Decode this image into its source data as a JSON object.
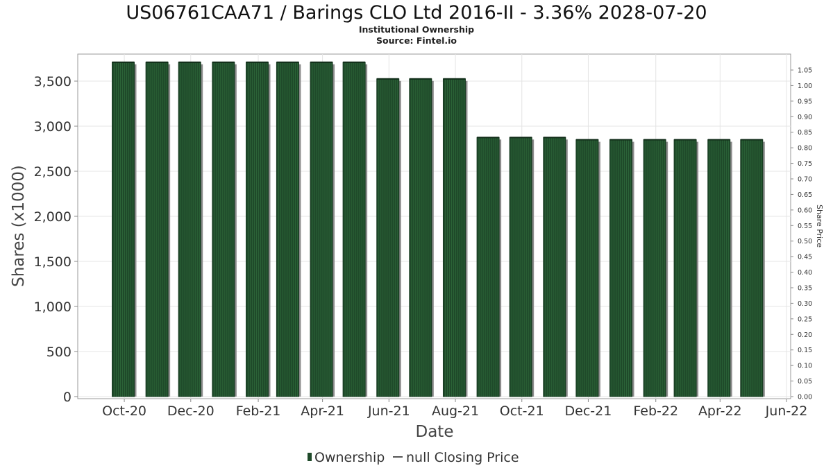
{
  "chart_data": {
    "type": "bar",
    "title": "US06761CAA71 / Barings CLO Ltd 2016-II - 3.36% 2028-07-20",
    "subtitle": "Institutional Ownership",
    "source": "Source: Fintel.io",
    "xlabel": "Date",
    "ylabel": "Shares (x1000)",
    "y2label": "Share Price",
    "ylim": [
      0,
      3800
    ],
    "yticks": [
      0,
      500,
      1000,
      1500,
      2000,
      2500,
      3000,
      3500
    ],
    "ytick_labels": [
      "0",
      "500",
      "1,000",
      "1,500",
      "2,000",
      "2,500",
      "3,000",
      "3,500"
    ],
    "y2lim": [
      0,
      1.05
    ],
    "y2ticks": [
      0.0,
      0.05,
      0.1,
      0.15,
      0.2,
      0.25,
      0.3,
      0.35,
      0.4,
      0.45,
      0.5,
      0.55,
      0.6,
      0.65,
      0.7,
      0.75,
      0.8,
      0.85,
      0.9,
      0.95,
      1.0,
      1.05
    ],
    "y2tick_labels": [
      "0.00",
      "0.05",
      "0.10",
      "0.15",
      "0.20",
      "0.25",
      "0.30",
      "0.35",
      "0.40",
      "0.45",
      "0.50",
      "0.55",
      "0.60",
      "0.65",
      "0.70",
      "0.75",
      "0.80",
      "0.85",
      "0.90",
      "0.95",
      "1.00",
      "1.05"
    ],
    "xlim": [
      "2020-09-01",
      "2022-06-01"
    ],
    "xticks": [
      "2020-10-01",
      "2020-12-01",
      "2021-02-01",
      "2021-04-01",
      "2021-06-01",
      "2021-08-01",
      "2021-10-01",
      "2021-12-01",
      "2022-02-01",
      "2022-04-01",
      "2022-06-01"
    ],
    "xtick_labels": [
      "Oct-20",
      "Dec-20",
      "Feb-21",
      "Apr-21",
      "Jun-21",
      "Aug-21",
      "Oct-21",
      "Dec-21",
      "Feb-22",
      "Apr-22",
      "Jun-22"
    ],
    "grid": true,
    "series": [
      {
        "name": "Ownership",
        "color": "#1f4a2a",
        "x": [
          "2020-09-30",
          "2020-10-31",
          "2020-11-30",
          "2020-12-31",
          "2021-01-31",
          "2021-02-28",
          "2021-03-31",
          "2021-04-30",
          "2021-05-31",
          "2021-06-30",
          "2021-07-31",
          "2021-08-31",
          "2021-09-30",
          "2021-10-31",
          "2021-11-30",
          "2021-12-31",
          "2022-01-31",
          "2022-02-28",
          "2022-03-31",
          "2022-04-30"
        ],
        "values": [
          3710,
          3710,
          3710,
          3710,
          3710,
          3710,
          3710,
          3710,
          3525,
          3525,
          3525,
          2875,
          2875,
          2875,
          2850,
          2850,
          2850,
          2850,
          2850,
          2850
        ]
      }
    ],
    "legend": {
      "placement": "bottom-center",
      "entries": [
        "Ownership",
        "null Closing Price"
      ]
    }
  }
}
